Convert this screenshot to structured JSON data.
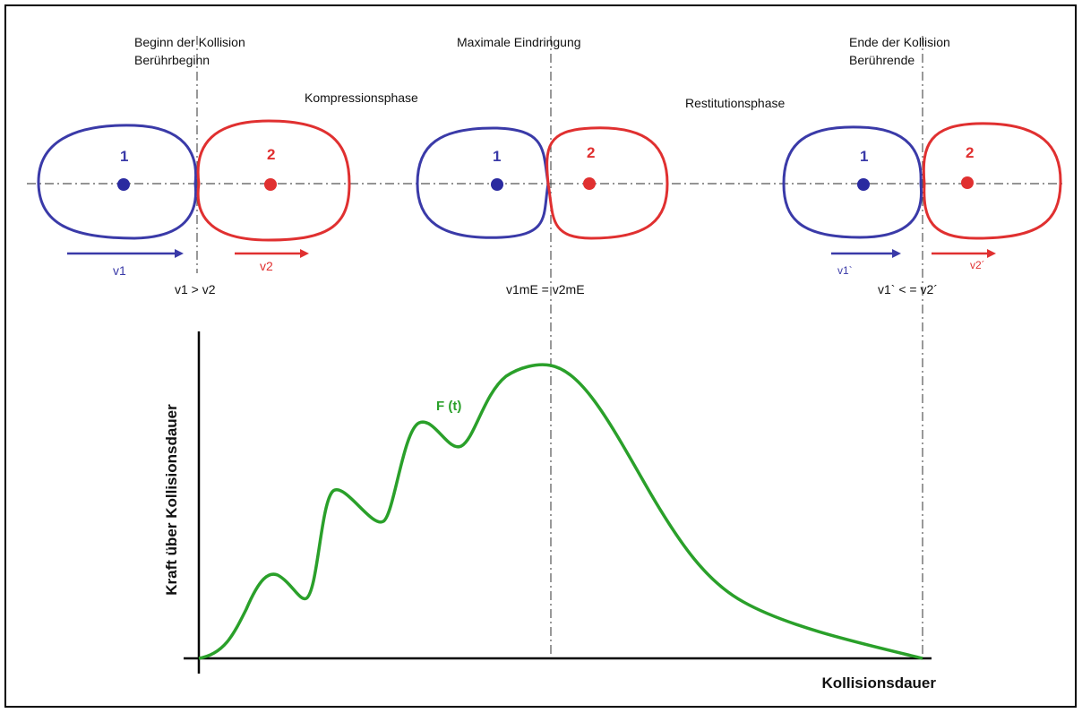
{
  "events": [
    {
      "lines": [
        "Beginn der Kollision",
        "Berührbeginn"
      ],
      "condition": "v1 > v2",
      "bodies": [
        "1",
        "2"
      ],
      "velocities": [
        "v1",
        "v2"
      ]
    },
    {
      "lines": [
        "Maximale Eindringung"
      ],
      "condition": "v1mE = v2mE",
      "bodies": [
        "1",
        "2"
      ]
    },
    {
      "lines": [
        "Ende der Kollision",
        "Berührende"
      ],
      "condition": "v1` < = v2´",
      "bodies": [
        "1",
        "2"
      ],
      "velocities": [
        "v1`",
        "v2´"
      ]
    }
  ],
  "phases": [
    "Kompressionsphase",
    "Restitutionsphase"
  ],
  "graph": {
    "curve_label": "F (t)",
    "y_label": "Kraft über Kollisionsdauer",
    "x_label": "Kollisionsdauer"
  }
}
